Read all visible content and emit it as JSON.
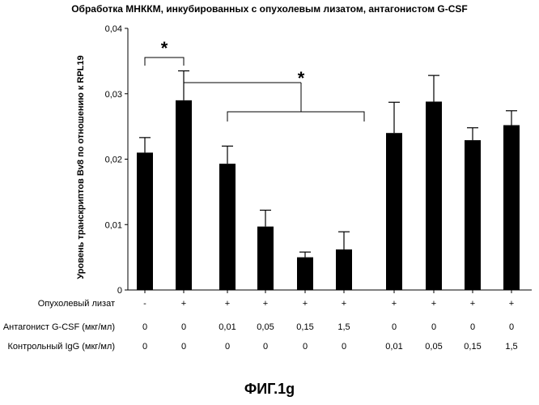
{
  "figure_caption": "ФИГ.1g",
  "chart_data": {
    "type": "bar",
    "title": "Обработка МНККМ, инкубированных с опухолевым лизатом, антагонистом G-CSF",
    "ylabel": "Уровень транскриптов Bv8 по отношению к RPL19",
    "xlabel": "",
    "ylim": [
      0,
      0.04
    ],
    "yticks": [
      0,
      0.01,
      0.02,
      0.03,
      0.04
    ],
    "ytick_labels": [
      "0",
      "0,01",
      "0,02",
      "0,03",
      "0,04"
    ],
    "values": [
      0.021,
      0.029,
      0.0193,
      0.0097,
      0.005,
      0.0062,
      0.024,
      0.0288,
      0.0229,
      0.0252
    ],
    "error_upper": [
      0.0233,
      0.0335,
      0.022,
      0.0122,
      0.0058,
      0.0089,
      0.0287,
      0.0328,
      0.0248,
      0.0274
    ],
    "significance": [
      {
        "from": 0,
        "to": 1,
        "label": "*"
      },
      {
        "from": 1,
        "to_group": [
          2,
          5
        ],
        "label": "*"
      }
    ],
    "conditions": [
      {
        "label": "Опухолевый лизат",
        "values": [
          "-",
          "+",
          "+",
          "+",
          "+",
          "+",
          "+",
          "+",
          "+",
          "+"
        ]
      },
      {
        "label": "Антагонист G-CSF (мкг/мл)",
        "values": [
          "0",
          "0",
          "0,01",
          "0,05",
          "0,15",
          "1,5",
          "0",
          "0",
          "0",
          "0"
        ]
      },
      {
        "label": "Контрольный IgG (мкг/мл)",
        "values": [
          "0",
          "0",
          "0",
          "0",
          "0",
          "0",
          "0,01",
          "0,05",
          "0,15",
          "1,5"
        ]
      }
    ],
    "grid": false,
    "legend": "none",
    "bar_color": "#000000"
  }
}
